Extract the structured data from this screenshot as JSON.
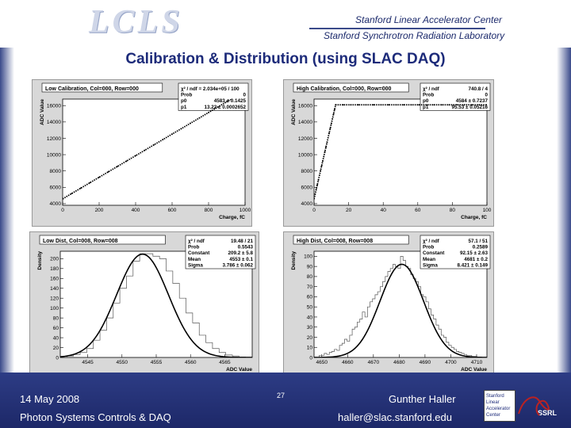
{
  "header": {
    "logo_text": "LCLS",
    "lab1": "Stanford Linear Accelerator Center",
    "lab2": "Stanford Synchrotron Radiation Laboratory"
  },
  "title": "Calibration & Distribution (using SLAC DAQ)",
  "footer": {
    "date": "14 May 2008",
    "dept": "Photon Systems Controls & DAQ",
    "page": "27",
    "author": "Gunther Haller",
    "email": "haller@slac.stanford.edu",
    "logo_lines": [
      "Stanford",
      "Linear",
      "Accelerator",
      "Center"
    ],
    "corner": "SSRL"
  },
  "colors": {
    "footer": "#1d2868",
    "title": "#1d2b7a"
  },
  "chart_data": [
    {
      "type": "line",
      "title": "Low  Calibration, Col=000, Row=000",
      "xlabel": "Charge, fC",
      "ylabel": "ADC Value",
      "xticks": [
        "0",
        "200",
        "400",
        "600",
        "800",
        "1000"
      ],
      "yticks": [
        "4000",
        "6000",
        "8000",
        "10000",
        "12000",
        "14000",
        "16000"
      ],
      "xlim": [
        0,
        1000
      ],
      "ylim": [
        3800,
        16800
      ],
      "stats": [
        [
          "χ² / ndf = 2.034e+05 / 100",
          ""
        ],
        [
          "Prob",
          "0"
        ],
        [
          "p0",
          "4583 ± 0.1425"
        ],
        [
          "p1",
          "13.22 ± 0.0002652"
        ]
      ],
      "x": [
        0,
        1000
      ],
      "y": [
        4583,
        17800
      ]
    },
    {
      "type": "line",
      "title": "High  Calibration, Col=000, Row=000",
      "xlabel": "Charge, fC",
      "ylabel": "ADC Value",
      "xticks": [
        "0",
        "20",
        "40",
        "60",
        "80",
        "100"
      ],
      "yticks": [
        "4000",
        "6000",
        "8000",
        "10000",
        "12000",
        "14000",
        "16000"
      ],
      "xlim": [
        0,
        100
      ],
      "ylim": [
        3800,
        16800
      ],
      "stats": [
        [
          "χ² / ndf",
          "740.8 / 4"
        ],
        [
          "Prob",
          "0"
        ],
        [
          "p0",
          "4584 ± 0.7237"
        ],
        [
          "p1",
          "95.53 ± 0.05216"
        ]
      ],
      "x": [
        0,
        12.5,
        100
      ],
      "y": [
        4584,
        16100,
        16100
      ]
    },
    {
      "type": "bar",
      "title": "Low  Dist, Col=008, Row=008",
      "xlabel": "ADC Value",
      "ylabel": "Density",
      "xticks": [
        "4545",
        "4550",
        "4555",
        "4560",
        "4565"
      ],
      "yticks": [
        "0",
        "20",
        "40",
        "60",
        "80",
        "100",
        "120",
        "140",
        "160",
        "180",
        "200"
      ],
      "xlim": [
        4541,
        4569
      ],
      "ylim": [
        0,
        215
      ],
      "stats": [
        [
          "χ² / ndf",
          "19.48 / 21"
        ],
        [
          "Prob",
          "0.5543"
        ],
        [
          "Constant",
          "209.2 ± 5.8"
        ],
        [
          "Mean",
          "4553 ± 0.1"
        ],
        [
          "Sigma",
          "3.786 ± 0.062"
        ]
      ],
      "gauss": {
        "constant": 209.2,
        "mean": 4553,
        "sigma": 3.786
      },
      "values": [
        0,
        3,
        6,
        10,
        18,
        35,
        55,
        80,
        110,
        140,
        165,
        195,
        210,
        210,
        205,
        200,
        175,
        150,
        120,
        90,
        70,
        45,
        30,
        18,
        10,
        5,
        3,
        1,
        0
      ]
    },
    {
      "type": "bar",
      "title": "High  Dist, Col=008, Row=008",
      "xlabel": "ADC Value",
      "ylabel": "Density",
      "xticks": [
        "4650",
        "4660",
        "4670",
        "4680",
        "4690",
        "4700",
        "4710"
      ],
      "yticks": [
        "0",
        "10",
        "20",
        "30",
        "40",
        "50",
        "60",
        "70",
        "80",
        "90",
        "100"
      ],
      "xlim": [
        4647,
        4714
      ],
      "ylim": [
        0,
        105
      ],
      "stats": [
        [
          "χ² / ndf",
          "57.1 / 51"
        ],
        [
          "Prob",
          "0.2589"
        ],
        [
          "Constant",
          "92.15 ± 2.63"
        ],
        [
          "Mean",
          "4681 ± 0.2"
        ],
        [
          "Sigma",
          "8.421 ± 0.149"
        ]
      ],
      "gauss": {
        "constant": 92.15,
        "mean": 4681,
        "sigma": 8.421
      },
      "values": [
        0,
        0,
        2,
        2,
        4,
        3,
        5,
        6,
        8,
        7,
        12,
        14,
        18,
        16,
        22,
        28,
        30,
        35,
        38,
        45,
        40,
        50,
        55,
        58,
        62,
        65,
        70,
        75,
        80,
        85,
        88,
        92,
        90,
        88,
        100,
        96,
        90,
        88,
        82,
        78,
        75,
        70,
        62,
        60,
        55,
        48,
        42,
        38,
        32,
        28,
        22,
        20,
        15,
        12,
        10,
        8,
        6,
        5,
        4,
        3,
        2,
        2,
        1,
        1,
        0,
        0,
        0,
        0
      ]
    }
  ]
}
